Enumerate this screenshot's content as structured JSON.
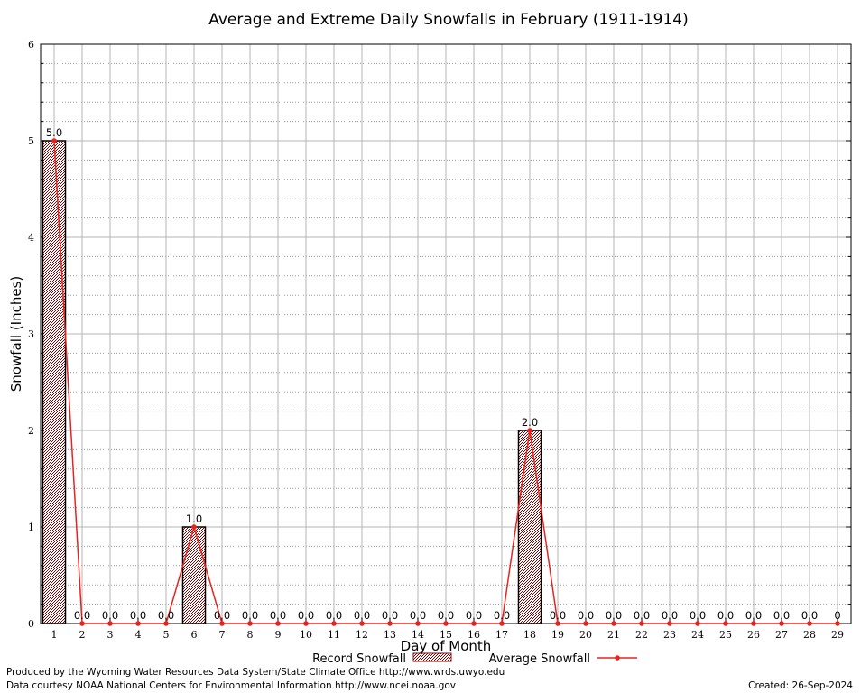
{
  "chart_data": {
    "type": "bar",
    "title": "Average and Extreme Daily Snowfalls in February (1911-1914)",
    "xlabel": "Day of Month",
    "ylabel": "Snowfall (Inches)",
    "ylim": [
      0,
      6
    ],
    "y_ticks": [
      "0",
      "1",
      "2",
      "3",
      "4",
      "5",
      "6"
    ],
    "categories": [
      "1",
      "2",
      "3",
      "4",
      "5",
      "6",
      "7",
      "8",
      "9",
      "10",
      "11",
      "12",
      "13",
      "14",
      "15",
      "16",
      "17",
      "18",
      "19",
      "20",
      "21",
      "22",
      "23",
      "24",
      "25",
      "26",
      "27",
      "28",
      "29"
    ],
    "series": [
      {
        "name": "Record Snowfall",
        "kind": "bar",
        "color": "#8b0000",
        "values": [
          5,
          0,
          0,
          0,
          0,
          1,
          0,
          0,
          0,
          0,
          0,
          0,
          0,
          0,
          0,
          0,
          0,
          2,
          0,
          0,
          0,
          0,
          0,
          0,
          0,
          0,
          0,
          0,
          0
        ]
      },
      {
        "name": "Average Snowfall",
        "kind": "line",
        "color": "#e8231f",
        "values": [
          5,
          0,
          0,
          0,
          0,
          1,
          0,
          0,
          0,
          0,
          0,
          0,
          0,
          0,
          0,
          0,
          0,
          2,
          0,
          0,
          0,
          0,
          0,
          0,
          0,
          0,
          0,
          0,
          0
        ]
      }
    ],
    "data_labels": [
      "5.0",
      "0.0",
      "0.0",
      "0.0",
      "0.0",
      "1.0",
      "0.0",
      "0.0",
      "0.0",
      "0.0",
      "0.0",
      "0.0",
      "0.0",
      "0.0",
      "0.0",
      "0.0",
      "0.0",
      "2.0",
      "0.0",
      "0.0",
      "0.0",
      "0.0",
      "0.0",
      "0.0",
      "0.0",
      "0.0",
      "0.0",
      "0.0",
      "0"
    ],
    "grid": true,
    "legend_position": "bottom"
  },
  "footer": {
    "produced_by": "Produced by the Wyoming Water Resources Data System/State Climate Office http://www.wrds.uwyo.edu",
    "data_courtesy": "Data courtesy NOAA National Centers for Environmental Information http://www.ncei.noaa.gov",
    "created": "Created:  26-Sep-2024"
  }
}
